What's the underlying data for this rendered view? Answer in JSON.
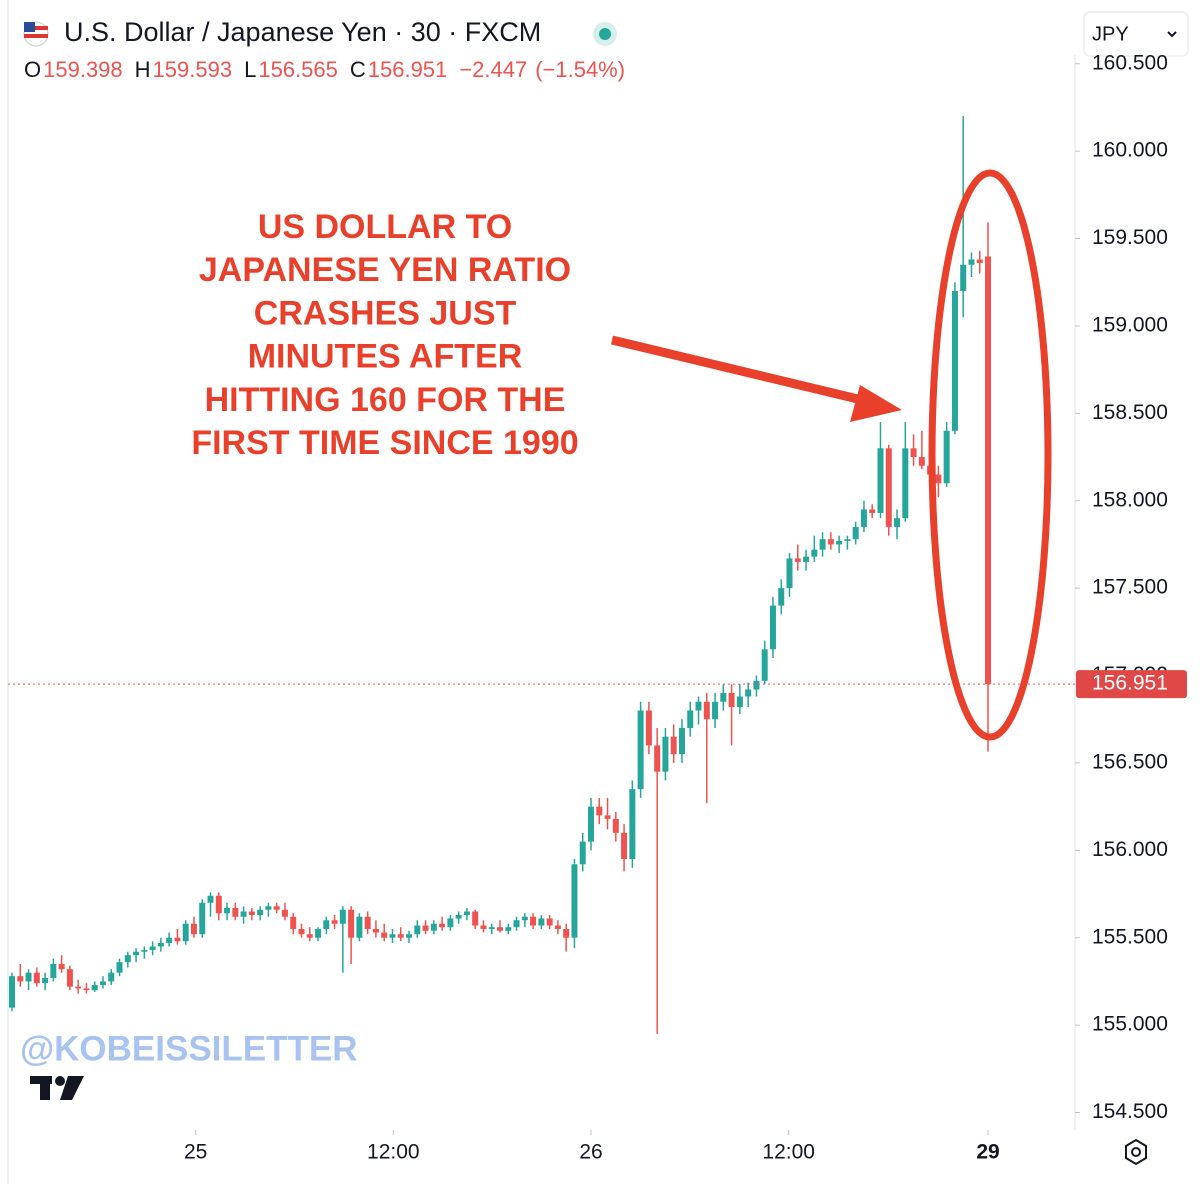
{
  "chart_data": {
    "type": "candlestick",
    "title": "U.S. Dollar / Japanese Yen · 30 · FXCM",
    "currency": "JPY",
    "ohlc_legend": [
      {
        "label": "O",
        "value": 159.398
      },
      {
        "label": "H",
        "value": 159.593
      },
      {
        "label": "L",
        "value": 156.565
      },
      {
        "label": "C",
        "value": 156.951
      }
    ],
    "change": {
      "value": -2.447,
      "label": "−2.447"
    },
    "change_pct": {
      "value": -1.54,
      "label": "(−1.54%)"
    },
    "annotation": [
      "US DOLLAR TO",
      "JAPANESE YEN RATIO",
      "CRASHES JUST",
      "MINUTES AFTER",
      "HITTING 160 FOR THE",
      "FIRST TIME SINCE 1990"
    ],
    "watermark": "@KOBEISSILETTER",
    "up_color": "#26a69a",
    "down_color": "#ef5350",
    "annotation_color": "#e8402a",
    "ylim": [
      154.4,
      160.55
    ],
    "yticks": [
      {
        "value": 154.5,
        "label": "154.500"
      },
      {
        "value": 155,
        "label": "155.000"
      },
      {
        "value": 155.5,
        "label": "155.500"
      },
      {
        "value": 156,
        "label": "156.000"
      },
      {
        "value": 156.5,
        "label": "156.500"
      },
      {
        "value": 157,
        "label": "157.000"
      },
      {
        "value": 157.5,
        "label": "157.500"
      },
      {
        "value": 158,
        "label": "158.000"
      },
      {
        "value": 158.5,
        "label": "158.500"
      },
      {
        "value": 159,
        "label": "159.000"
      },
      {
        "value": 159.5,
        "label": "159.500"
      },
      {
        "value": 160,
        "label": "160.000"
      },
      {
        "value": 160.5,
        "label": "160.500"
      }
    ],
    "xlim": [
      0,
      129
    ],
    "xticks": [
      {
        "value": 22.2,
        "label": "25"
      },
      {
        "value": 46.1,
        "label": "12:00"
      },
      {
        "value": 70,
        "label": "26"
      },
      {
        "value": 93.9,
        "label": "12:00"
      },
      {
        "value": 118,
        "label": "29"
      }
    ],
    "candles": [
      [
        155.1,
        155.3,
        155.08,
        155.28
      ],
      [
        155.28,
        155.35,
        155.22,
        155.25
      ],
      [
        155.25,
        155.32,
        155.2,
        155.3
      ],
      [
        155.3,
        155.33,
        155.22,
        155.24
      ],
      [
        155.24,
        155.3,
        155.2,
        155.27
      ],
      [
        155.27,
        155.38,
        155.25,
        155.35
      ],
      [
        155.35,
        155.4,
        155.3,
        155.32
      ],
      [
        155.32,
        155.34,
        155.2,
        155.22
      ],
      [
        155.22,
        155.26,
        155.18,
        155.21
      ],
      [
        155.21,
        155.24,
        155.18,
        155.2
      ],
      [
        155.2,
        155.25,
        155.19,
        155.23
      ],
      [
        155.23,
        155.28,
        155.21,
        155.25
      ],
      [
        155.25,
        155.32,
        155.23,
        155.3
      ],
      [
        155.3,
        155.38,
        155.28,
        155.36
      ],
      [
        155.36,
        155.42,
        155.33,
        155.4
      ],
      [
        155.4,
        155.44,
        155.36,
        155.42
      ],
      [
        155.42,
        155.45,
        155.38,
        155.43
      ],
      [
        155.43,
        155.48,
        155.4,
        155.45
      ],
      [
        155.45,
        155.5,
        155.42,
        155.47
      ],
      [
        155.47,
        155.53,
        155.45,
        155.5
      ],
      [
        155.5,
        155.55,
        155.46,
        155.48
      ],
      [
        155.48,
        155.6,
        155.46,
        155.58
      ],
      [
        155.58,
        155.62,
        155.5,
        155.52
      ],
      [
        155.52,
        155.72,
        155.5,
        155.7
      ],
      [
        155.7,
        155.76,
        155.62,
        155.74
      ],
      [
        155.74,
        155.76,
        155.6,
        155.64
      ],
      [
        155.64,
        155.7,
        155.6,
        155.67
      ],
      [
        155.67,
        155.7,
        155.6,
        155.62
      ],
      [
        155.62,
        155.68,
        155.58,
        155.65
      ],
      [
        155.65,
        155.67,
        155.6,
        155.63
      ],
      [
        155.63,
        155.68,
        155.6,
        155.66
      ],
      [
        155.66,
        155.7,
        155.62,
        155.68
      ],
      [
        155.68,
        155.7,
        155.64,
        155.66
      ],
      [
        155.66,
        155.7,
        155.6,
        155.62
      ],
      [
        155.62,
        155.64,
        155.52,
        155.55
      ],
      [
        155.55,
        155.58,
        155.5,
        155.52
      ],
      [
        155.52,
        155.56,
        155.48,
        155.5
      ],
      [
        155.5,
        155.56,
        155.48,
        155.55
      ],
      [
        155.55,
        155.62,
        155.52,
        155.6
      ],
      [
        155.6,
        155.63,
        155.55,
        155.58
      ],
      [
        155.58,
        155.68,
        155.3,
        155.66
      ],
      [
        155.66,
        155.68,
        155.35,
        155.5
      ],
      [
        155.5,
        155.64,
        155.48,
        155.62
      ],
      [
        155.62,
        155.65,
        155.52,
        155.55
      ],
      [
        155.55,
        155.6,
        155.5,
        155.53
      ],
      [
        155.53,
        155.58,
        155.48,
        155.5
      ],
      [
        155.5,
        155.55,
        155.47,
        155.52
      ],
      [
        155.52,
        155.56,
        155.48,
        155.5
      ],
      [
        155.5,
        155.54,
        155.47,
        155.52
      ],
      [
        155.52,
        155.6,
        155.5,
        155.57
      ],
      [
        155.57,
        155.6,
        155.52,
        155.54
      ],
      [
        155.54,
        155.6,
        155.52,
        155.58
      ],
      [
        155.58,
        155.62,
        155.54,
        155.56
      ],
      [
        155.56,
        155.63,
        155.54,
        155.61
      ],
      [
        155.61,
        155.65,
        155.58,
        155.63
      ],
      [
        155.63,
        155.67,
        155.6,
        155.65
      ],
      [
        155.65,
        155.66,
        155.55,
        155.57
      ],
      [
        155.57,
        155.6,
        155.53,
        155.55
      ],
      [
        155.55,
        155.58,
        155.52,
        155.56
      ],
      [
        155.56,
        155.6,
        155.53,
        155.54
      ],
      [
        155.54,
        155.58,
        155.52,
        155.56
      ],
      [
        155.56,
        155.62,
        155.54,
        155.6
      ],
      [
        155.6,
        155.64,
        155.56,
        155.62
      ],
      [
        155.62,
        155.64,
        155.55,
        155.57
      ],
      [
        155.57,
        155.63,
        155.55,
        155.61
      ],
      [
        155.61,
        155.63,
        155.55,
        155.57
      ],
      [
        155.57,
        155.6,
        155.52,
        155.55
      ],
      [
        155.55,
        155.58,
        155.42,
        155.5
      ],
      [
        155.5,
        155.95,
        155.44,
        155.92
      ],
      [
        155.92,
        156.1,
        155.88,
        156.05
      ],
      [
        156.05,
        156.3,
        156.0,
        156.25
      ],
      [
        156.25,
        156.3,
        156.15,
        156.2
      ],
      [
        156.2,
        156.3,
        156.12,
        156.18
      ],
      [
        156.18,
        156.22,
        156.05,
        156.1
      ],
      [
        156.1,
        156.15,
        155.88,
        155.95
      ],
      [
        155.95,
        156.4,
        155.9,
        156.35
      ],
      [
        156.35,
        156.85,
        156.3,
        156.8
      ],
      [
        156.8,
        156.85,
        156.55,
        156.6
      ],
      [
        156.6,
        156.7,
        154.95,
        156.45
      ],
      [
        156.45,
        156.7,
        156.4,
        156.65
      ],
      [
        156.65,
        156.72,
        156.5,
        156.55
      ],
      [
        156.55,
        156.75,
        156.5,
        156.7
      ],
      [
        156.7,
        156.85,
        156.65,
        156.8
      ],
      [
        156.8,
        156.88,
        156.72,
        156.85
      ],
      [
        156.85,
        156.9,
        156.27,
        156.75
      ],
      [
        156.75,
        156.9,
        156.7,
        156.85
      ],
      [
        156.85,
        156.95,
        156.8,
        156.9
      ],
      [
        156.9,
        156.95,
        156.6,
        156.82
      ],
      [
        156.82,
        156.95,
        156.78,
        156.88
      ],
      [
        156.88,
        156.96,
        156.82,
        156.92
      ],
      [
        156.92,
        157.0,
        156.88,
        156.97
      ],
      [
        156.97,
        157.2,
        156.95,
        157.15
      ],
      [
        157.15,
        157.45,
        157.1,
        157.4
      ],
      [
        157.4,
        157.55,
        157.35,
        157.5
      ],
      [
        157.5,
        157.7,
        157.45,
        157.67
      ],
      [
        157.67,
        157.75,
        157.6,
        157.65
      ],
      [
        157.65,
        157.72,
        157.6,
        157.68
      ],
      [
        157.68,
        157.8,
        157.65,
        157.72
      ],
      [
        157.72,
        157.82,
        157.68,
        157.78
      ],
      [
        157.78,
        157.82,
        157.72,
        157.75
      ],
      [
        157.75,
        157.8,
        157.7,
        157.77
      ],
      [
        157.77,
        157.8,
        157.72,
        157.78
      ],
      [
        157.78,
        157.88,
        157.75,
        157.85
      ],
      [
        157.85,
        158.0,
        157.82,
        157.95
      ],
      [
        157.95,
        157.98,
        157.9,
        157.93
      ],
      [
        157.93,
        158.45,
        157.9,
        158.3
      ],
      [
        158.3,
        158.32,
        157.8,
        157.85
      ],
      [
        157.85,
        157.95,
        157.78,
        157.9
      ],
      [
        157.9,
        158.45,
        157.88,
        158.3
      ],
      [
        158.3,
        158.38,
        158.2,
        158.25
      ],
      [
        158.25,
        158.4,
        158.18,
        158.2
      ],
      [
        158.2,
        158.28,
        158.12,
        158.15
      ],
      [
        158.15,
        158.2,
        158.02,
        158.1
      ],
      [
        158.1,
        158.45,
        158.08,
        158.4
      ],
      [
        158.4,
        159.25,
        158.38,
        159.2
      ],
      [
        159.2,
        160.2,
        159.05,
        159.35
      ],
      [
        159.35,
        159.42,
        159.28,
        159.38
      ],
      [
        159.38,
        159.43,
        159.3,
        159.36
      ],
      [
        159.398,
        159.593,
        156.565,
        156.951
      ]
    ]
  }
}
